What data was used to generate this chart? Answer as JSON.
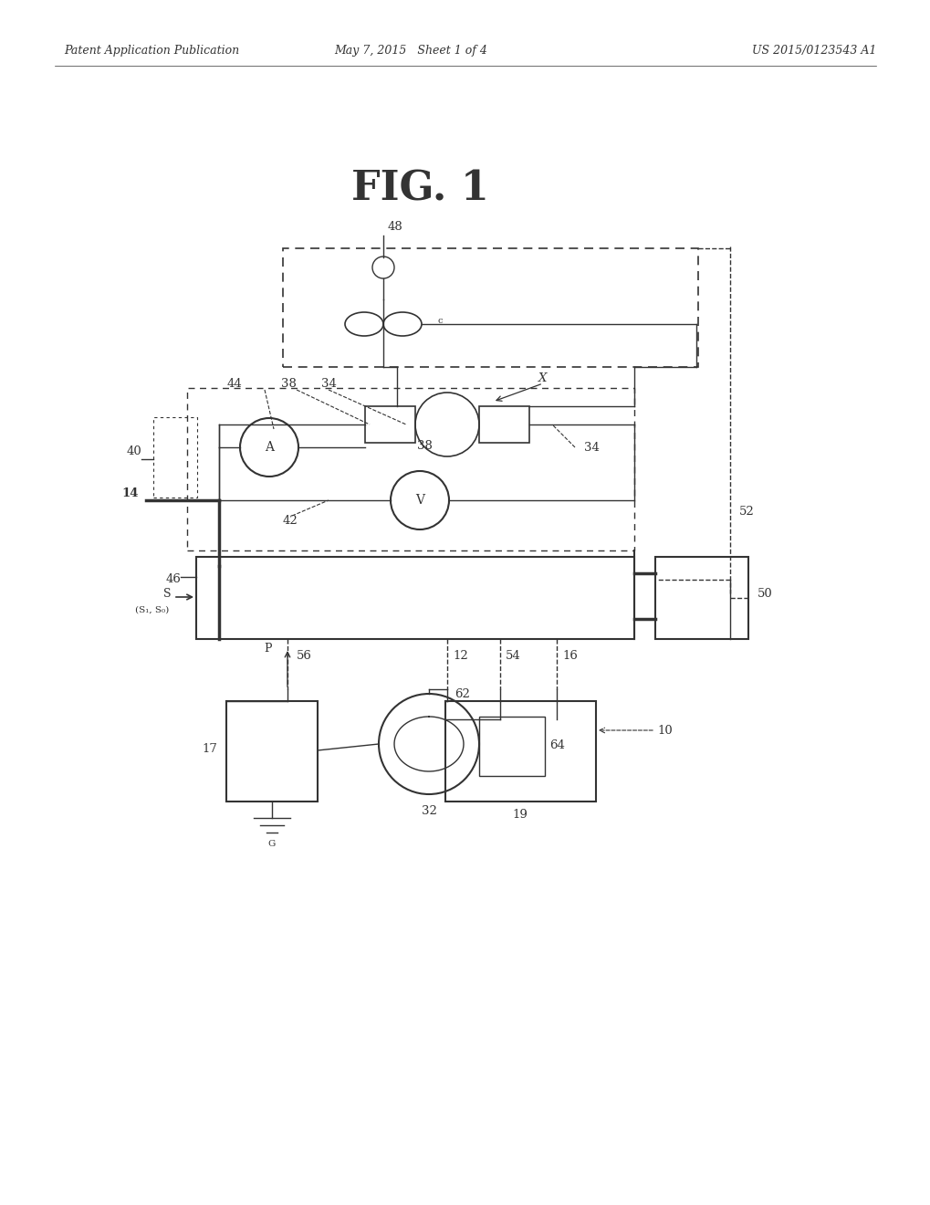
{
  "title": "FIG. 1",
  "header_left": "Patent Application Publication",
  "header_mid": "May 7, 2015   Sheet 1 of 4",
  "header_right": "US 2015/0123543 A1",
  "bg_color": "#ffffff",
  "line_color": "#333333",
  "fig_title_fontsize": 32,
  "header_fontsize": 9,
  "label_fontsize": 9.5
}
